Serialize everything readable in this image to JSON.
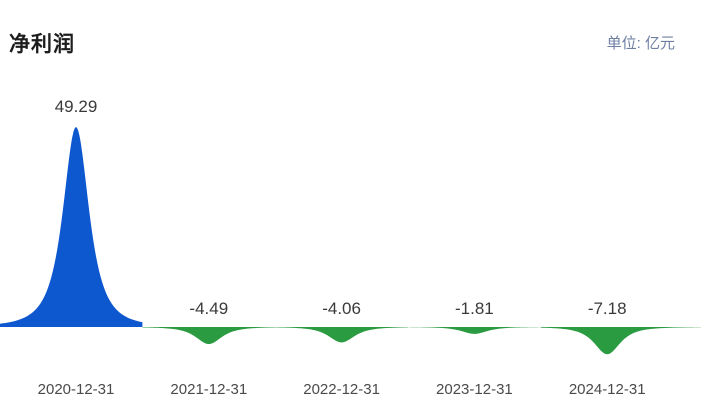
{
  "header": {
    "title": "净利润",
    "unit_label": "单位: 亿元"
  },
  "chart_data": {
    "type": "area",
    "variant": "peak-area",
    "title": "净利润",
    "unit": "亿元",
    "categories": [
      "2020-12-31",
      "2021-12-31",
      "2022-12-31",
      "2023-12-31",
      "2024-12-31"
    ],
    "values": [
      49.29,
      -4.49,
      -4.06,
      -1.81,
      -7.18
    ],
    "value_labels": [
      "49.29",
      "-4.49",
      "-4.06",
      "-1.81",
      "-7.18"
    ],
    "baseline": 0,
    "ylim": [
      -7.18,
      49.29
    ],
    "grid": false,
    "legend_position": "none",
    "colors": {
      "positive": "#0e58cf",
      "negative": "#2a9b41",
      "value_label": "#3a3a3a",
      "axis_label": "#4a4a4a",
      "title": "#1c1c1c",
      "unit": "#6e7fa3"
    }
  }
}
